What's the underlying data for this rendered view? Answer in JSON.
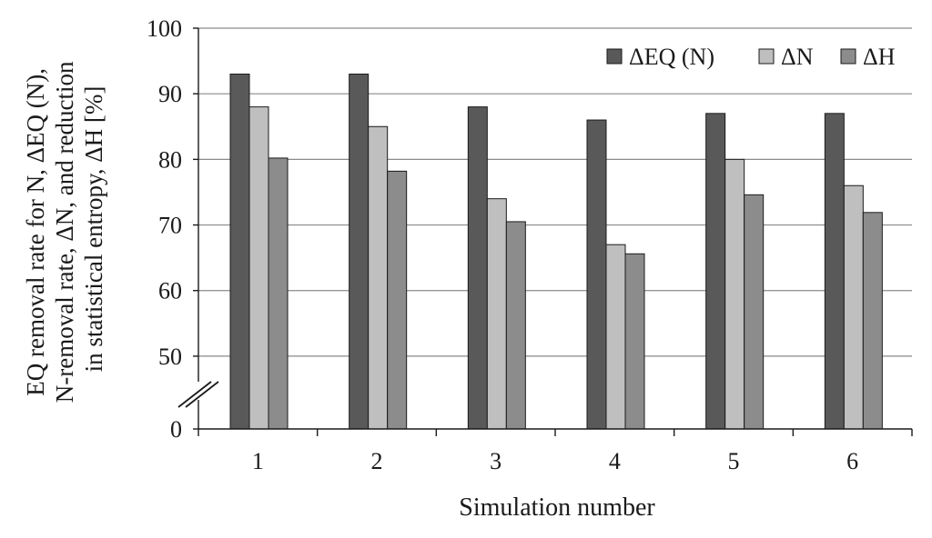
{
  "chart_data": {
    "type": "bar",
    "xlabel": "Simulation number",
    "ylabel_lines": [
      "EQ removal rate for N, ΔEQ (N),",
      "N-removal rate, ΔN, and reduction",
      "in statistical entropy, ΔH [%]"
    ],
    "categories": [
      "1",
      "2",
      "3",
      "4",
      "5",
      "6"
    ],
    "series": [
      {
        "name": "ΔEQ (N)",
        "color": "#595959",
        "values": [
          93,
          93,
          88,
          86,
          87,
          87
        ]
      },
      {
        "name": "ΔN",
        "color": "#bfbfbf",
        "values": [
          88,
          85,
          74,
          67,
          80,
          76
        ]
      },
      {
        "name": "ΔH",
        "color": "#8c8c8c",
        "values": [
          80.2,
          78.2,
          70.5,
          65.6,
          74.6,
          71.9
        ]
      }
    ],
    "y_axis": {
      "broken": true,
      "tick_labels": [
        "0",
        "50",
        "60",
        "70",
        "80",
        "90",
        "100"
      ],
      "ylim": [
        0,
        100
      ],
      "break_range": [
        0,
        45
      ]
    },
    "grid": true,
    "legend_position": "top-right"
  }
}
